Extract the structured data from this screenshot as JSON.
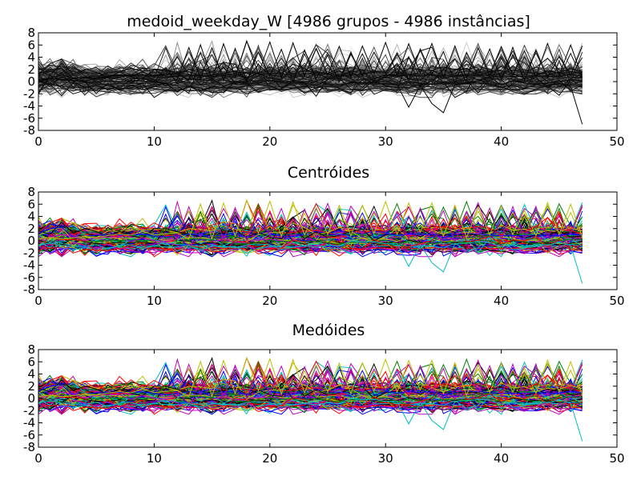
{
  "chart_data": [
    {
      "type": "line",
      "title": "medoid_weekday_W [4986 grupos - 4986 instâncias]",
      "xlabel": "",
      "ylabel": "",
      "xlim": [
        0,
        50
      ],
      "ylim": [
        -8,
        8
      ],
      "x_ticks": [
        "0",
        "10",
        "20",
        "30",
        "40",
        "50"
      ],
      "y_ticks": [
        "8",
        "6",
        "4",
        "2",
        "0",
        "-2",
        "-4",
        "-6",
        "-8"
      ],
      "grid": false,
      "legend": "none",
      "color_style": "grayscale",
      "series_count": 4986,
      "points_per_series": 48,
      "x_range": [
        0,
        47
      ],
      "approx_envelope": {
        "upper": 6.5,
        "lower": -2.5,
        "min_outlier": -7,
        "min_outlier_x": 47
      }
    },
    {
      "type": "line",
      "title": "Centróides",
      "xlabel": "",
      "ylabel": "",
      "xlim": [
        0,
        50
      ],
      "ylim": [
        -8,
        8
      ],
      "x_ticks": [
        "0",
        "10",
        "20",
        "30",
        "40",
        "50"
      ],
      "y_ticks": [
        "8",
        "6",
        "4",
        "2",
        "0",
        "-2",
        "-4",
        "-6",
        "-8"
      ],
      "grid": false,
      "legend": "none",
      "color_cycle": [
        "#0000ff",
        "#008000",
        "#ff0000",
        "#00bfbf",
        "#bf00bf",
        "#bfbf00",
        "#000000"
      ],
      "series_count": 4986,
      "points_per_series": 48,
      "x_range": [
        0,
        47
      ],
      "approx_envelope": {
        "upper": 6.5,
        "lower": -2.5,
        "min_outlier": -7,
        "min_outlier_x": 47
      }
    },
    {
      "type": "line",
      "title": "Medóides",
      "xlabel": "",
      "ylabel": "",
      "xlim": [
        0,
        50
      ],
      "ylim": [
        -8,
        8
      ],
      "x_ticks": [
        "0",
        "10",
        "20",
        "30",
        "40",
        "50"
      ],
      "y_ticks": [
        "8",
        "6",
        "4",
        "2",
        "0",
        "-2",
        "-4",
        "-6",
        "-8"
      ],
      "grid": false,
      "legend": "none",
      "color_cycle": [
        "#0000ff",
        "#008000",
        "#ff0000",
        "#00bfbf",
        "#bf00bf",
        "#bfbf00",
        "#000000"
      ],
      "series_count": 4986,
      "points_per_series": 48,
      "x_range": [
        0,
        47
      ],
      "approx_envelope": {
        "upper": 6.5,
        "lower": -2.5,
        "min_outlier": -7,
        "min_outlier_x": 47
      }
    }
  ]
}
